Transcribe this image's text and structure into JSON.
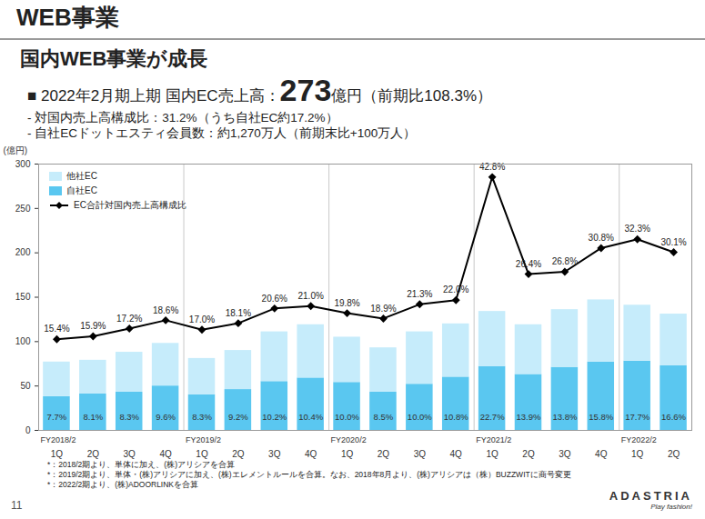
{
  "page": {
    "title": "WEB事業",
    "heading": "国内WEB事業が成長",
    "headline": {
      "bullet": "■",
      "prefix": "2022年2月期上期 国内EC売上高：",
      "value": "273",
      "suffix": "億円（前期比108.3%）"
    },
    "bullets": [
      "- 対国内売上高構成比：31.2%（うち自社EC約17.2%）",
      "- 自社ECドットエスティ会員数：約1,270万人（前期末比+100万人）"
    ],
    "footnotes": [
      "*：2018/2期より、単体に加え、(株)アリシアを合算",
      "*：2019/2期より、単体・(株)アリシアに加え、(株)エレメントルールを合算。なお、2018年8月より、(株)アリシアは（株）BUZZWITに商号変更",
      "*：2022/2期より、(株)ADOORLINKを合算"
    ],
    "page_number": "11",
    "logo": "ADASTRIA",
    "tagline": "Play fashion!"
  },
  "chart_data": {
    "type": "bar",
    "stacked": true,
    "y_label": "(億円)",
    "categories": [
      "1Q",
      "2Q",
      "3Q",
      "4Q",
      "1Q",
      "2Q",
      "3Q",
      "4Q",
      "1Q",
      "2Q",
      "3Q",
      "4Q",
      "1Q",
      "2Q",
      "3Q",
      "4Q",
      "1Q",
      "2Q"
    ],
    "fiscal_years": [
      "FY2018/2",
      null,
      null,
      null,
      "FY2019/2",
      null,
      null,
      null,
      "FY2020/2",
      null,
      null,
      null,
      "FY2021/2",
      null,
      null,
      null,
      "FY2022/2",
      null
    ],
    "ylim": [
      0,
      300
    ],
    "yticks": [
      0,
      50,
      100,
      150,
      200,
      250,
      300
    ],
    "y2lim": [
      0,
      45
    ],
    "grid": false,
    "legend": "top-left",
    "series": [
      {
        "name": "他社EC",
        "type": "bar",
        "color": "#c6ecfb",
        "values": [
          39,
          38,
          45,
          48,
          41,
          44,
          56,
          60,
          51,
          50,
          59,
          60,
          62,
          56,
          65,
          70,
          63,
          58
        ]
      },
      {
        "name": "自社EC",
        "type": "bar",
        "color": "#5ac7f0",
        "values": [
          38,
          41,
          43,
          50,
          40,
          46,
          55,
          59,
          54,
          43,
          52,
          60,
          72,
          63,
          71,
          77,
          78,
          73
        ],
        "bottom_labels": [
          "7.7%",
          "8.1%",
          "8.3%",
          "9.6%",
          "8.3%",
          "9.2%",
          "10.2%",
          "10.4%",
          "10.0%",
          "8.5%",
          "10.0%",
          "10.8%",
          "22.7%",
          "13.9%",
          "13.8%",
          "15.8%",
          "17.7%",
          "16.6%"
        ]
      },
      {
        "name": "EC合計対国内売上高構成比",
        "type": "line",
        "axis": "y2",
        "color": "#000000",
        "marker": "diamond",
        "data_labels": true,
        "values": [
          15.4,
          15.9,
          17.2,
          18.6,
          17.0,
          18.1,
          20.6,
          21.0,
          19.8,
          18.9,
          21.3,
          22.0,
          42.8,
          26.4,
          26.8,
          30.8,
          32.3,
          30.1
        ],
        "value_labels": [
          "15.4%",
          "15.9%",
          "17.2%",
          "18.6%",
          "17.0%",
          "18.1%",
          "20.6%",
          "21.0%",
          "19.8%",
          "18.9%",
          "21.3%",
          "22.0%",
          "42.8%",
          "26.4%",
          "26.8%",
          "30.8%",
          "32.3%",
          "30.1%"
        ]
      }
    ]
  }
}
